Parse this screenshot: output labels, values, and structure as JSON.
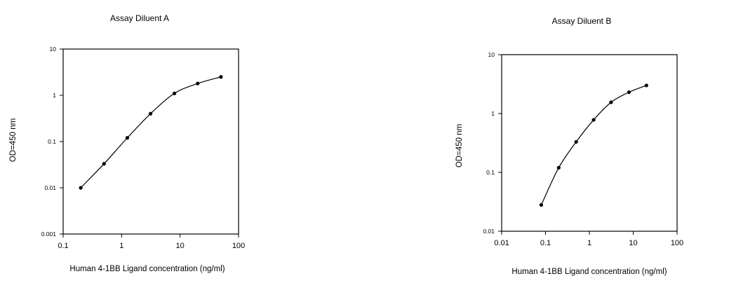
{
  "chart_data": [
    {
      "type": "line",
      "title": "Assay Diluent A",
      "xlabel": "Human 4-1BB Ligand concentration (ng/ml)",
      "ylabel": "OD=450 nm",
      "xscale": "log",
      "yscale": "log",
      "xlim": [
        0.1,
        100
      ],
      "ylim": [
        0.001,
        10
      ],
      "grid": false,
      "x_ticks": [
        "0.1",
        "1",
        "10",
        "100"
      ],
      "y_ticks": [
        "0.001",
        "0.01",
        "0.1",
        "1",
        "10"
      ],
      "series": [
        {
          "x": [
            0.2,
            0.5,
            1.25,
            3.12,
            8,
            20,
            50
          ],
          "values": [
            0.01,
            0.033,
            0.12,
            0.4,
            1.1,
            1.8,
            2.5
          ]
        }
      ]
    },
    {
      "type": "line",
      "title": "Assay Diluent B",
      "xlabel": "Human 4-1BB Ligand concentration (ng/ml)",
      "ylabel": "OD=450 nm",
      "xscale": "log",
      "yscale": "log",
      "xlim": [
        0.01,
        100
      ],
      "ylim": [
        0.01,
        10
      ],
      "grid": false,
      "x_ticks": [
        "0.01",
        "0.1",
        "1",
        "10",
        "100"
      ],
      "y_ticks": [
        "0.01",
        "0.1",
        "1",
        "10"
      ],
      "series": [
        {
          "x": [
            0.08,
            0.2,
            0.5,
            1.25,
            3.12,
            8,
            20
          ],
          "values": [
            0.028,
            0.12,
            0.33,
            0.78,
            1.55,
            2.3,
            3.0
          ]
        }
      ]
    }
  ]
}
